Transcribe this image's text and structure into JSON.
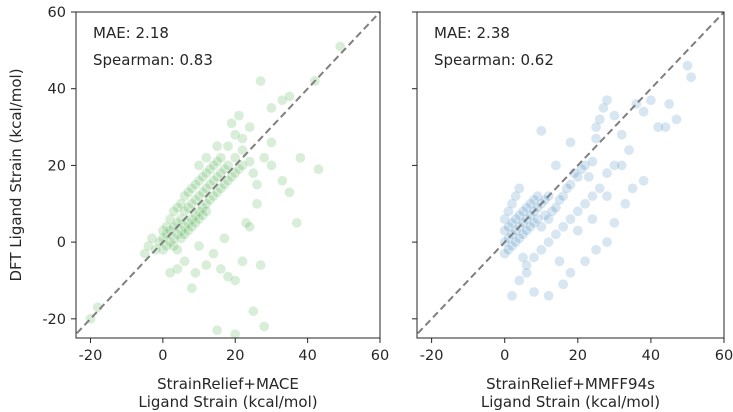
{
  "chart_data": [
    {
      "type": "scatter",
      "title": "",
      "xlabel": [
        "StrainRelief+MACE",
        "Ligand Strain (kcal/mol)"
      ],
      "ylabel": "DFT Ligand Strain (kcal/mol)",
      "xlim": [
        -24,
        60
      ],
      "ylim": [
        -25,
        60
      ],
      "x_ticks": [
        -20,
        0,
        20,
        40,
        60
      ],
      "y_ticks": [
        -20,
        0,
        20,
        40,
        60
      ],
      "tick_labels_x": [
        "-20",
        "0",
        "20",
        "40",
        "60"
      ],
      "tick_labels_y": [
        "-20",
        "0",
        "20",
        "40",
        "60"
      ],
      "point_color": "#2ca02c",
      "point_alpha": 0.18,
      "diagonal": {
        "style": "dashed",
        "color": "#7f7f7f"
      },
      "annotations": [
        "MAE: 2.18",
        "Spearman: 0.83"
      ],
      "series": [
        {
          "points": [
            [
              -20,
              -20
            ],
            [
              -18,
              -17
            ],
            [
              -5,
              -3
            ],
            [
              -4,
              -1
            ],
            [
              -3,
              1
            ],
            [
              -2,
              -2
            ],
            [
              -1,
              0
            ],
            [
              0,
              1
            ],
            [
              0,
              -2
            ],
            [
              0,
              3
            ],
            [
              1,
              2
            ],
            [
              1,
              -1
            ],
            [
              1,
              4
            ],
            [
              2,
              0
            ],
            [
              2,
              3
            ],
            [
              2,
              6
            ],
            [
              3,
              1
            ],
            [
              3,
              4
            ],
            [
              3,
              8
            ],
            [
              3,
              -1
            ],
            [
              4,
              2
            ],
            [
              4,
              5
            ],
            [
              4,
              9
            ],
            [
              4,
              -2
            ],
            [
              5,
              3
            ],
            [
              5,
              6
            ],
            [
              5,
              10
            ],
            [
              5,
              1
            ],
            [
              6,
              4
            ],
            [
              6,
              8
            ],
            [
              6,
              12
            ],
            [
              6,
              2
            ],
            [
              7,
              5
            ],
            [
              7,
              9
            ],
            [
              7,
              13
            ],
            [
              7,
              3
            ],
            [
              8,
              6
            ],
            [
              8,
              10
            ],
            [
              8,
              14
            ],
            [
              8,
              4
            ],
            [
              9,
              7
            ],
            [
              9,
              11
            ],
            [
              9,
              15
            ],
            [
              9,
              5
            ],
            [
              10,
              8
            ],
            [
              10,
              12
            ],
            [
              10,
              16
            ],
            [
              10,
              6
            ],
            [
              11,
              9
            ],
            [
              11,
              13
            ],
            [
              11,
              17
            ],
            [
              11,
              7
            ],
            [
              12,
              10
            ],
            [
              12,
              14
            ],
            [
              12,
              18
            ],
            [
              12,
              8
            ],
            [
              13,
              11
            ],
            [
              13,
              15
            ],
            [
              13,
              19
            ],
            [
              14,
              12
            ],
            [
              14,
              16
            ],
            [
              14,
              20
            ],
            [
              15,
              13
            ],
            [
              15,
              17
            ],
            [
              15,
              21
            ],
            [
              16,
              14
            ],
            [
              16,
              18
            ],
            [
              16,
              22
            ],
            [
              17,
              15
            ],
            [
              17,
              19
            ],
            [
              18,
              16
            ],
            [
              18,
              20
            ],
            [
              19,
              17
            ],
            [
              20,
              18
            ],
            [
              20,
              22
            ],
            [
              21,
              19
            ],
            [
              22,
              20
            ],
            [
              22,
              24
            ],
            [
              24,
              21
            ],
            [
              25,
              18
            ],
            [
              26,
              15
            ],
            [
              28,
              22
            ],
            [
              30,
              26
            ],
            [
              33,
              37
            ],
            [
              35,
              38
            ],
            [
              30,
              35
            ],
            [
              27,
              42
            ],
            [
              24,
              30
            ],
            [
              22,
              27
            ],
            [
              20,
              28
            ],
            [
              18,
              25
            ],
            [
              15,
              25
            ],
            [
              12,
              22
            ],
            [
              10,
              20
            ],
            [
              19,
              31
            ],
            [
              21,
              33
            ],
            [
              30,
              20
            ],
            [
              33,
              16
            ],
            [
              35,
              13
            ],
            [
              38,
              22
            ],
            [
              42,
              42
            ],
            [
              43,
              19
            ],
            [
              49,
              51
            ],
            [
              37,
              5
            ],
            [
              23,
              5
            ],
            [
              6,
              -5
            ],
            [
              9,
              -8
            ],
            [
              12,
              -6
            ],
            [
              16,
              -7
            ],
            [
              18,
              -9
            ],
            [
              20,
              -10
            ],
            [
              22,
              -5
            ],
            [
              27,
              -6
            ],
            [
              25,
              -18
            ],
            [
              28,
              -22
            ],
            [
              20,
              -24
            ],
            [
              15,
              -23
            ],
            [
              8,
              -12
            ],
            [
              4,
              -7
            ],
            [
              2,
              -8
            ],
            [
              14,
              -3
            ],
            [
              10,
              -1
            ],
            [
              24,
              4
            ],
            [
              17,
              1
            ],
            [
              26,
              10
            ]
          ]
        }
      ]
    },
    {
      "type": "scatter",
      "title": "",
      "xlabel": [
        "StrainRelief+MMFF94s",
        "Ligand Strain (kcal/mol)"
      ],
      "ylabel": "",
      "xlim": [
        -24,
        60
      ],
      "ylim": [
        -25,
        60
      ],
      "x_ticks": [
        -20,
        0,
        20,
        40,
        60
      ],
      "y_ticks": [
        -20,
        0,
        20,
        40,
        60
      ],
      "tick_labels_x": [
        "-20",
        "0",
        "20",
        "40",
        "60"
      ],
      "tick_labels_y": [],
      "point_color": "#1f77b4",
      "point_alpha": 0.18,
      "diagonal": {
        "style": "dashed",
        "color": "#7f7f7f"
      },
      "annotations": [
        "MAE: 2.38",
        "Spearman: 0.62"
      ],
      "series": [
        {
          "points": [
            [
              0,
              0
            ],
            [
              0,
              3
            ],
            [
              0,
              -3
            ],
            [
              0,
              6
            ],
            [
              1,
              1
            ],
            [
              1,
              4
            ],
            [
              1,
              -2
            ],
            [
              1,
              8
            ],
            [
              2,
              2
            ],
            [
              2,
              5
            ],
            [
              2,
              -1
            ],
            [
              2,
              10
            ],
            [
              3,
              3
            ],
            [
              3,
              6
            ],
            [
              3,
              0
            ],
            [
              3,
              12
            ],
            [
              4,
              4
            ],
            [
              4,
              7
            ],
            [
              4,
              1
            ],
            [
              4,
              14
            ],
            [
              5,
              5
            ],
            [
              5,
              8
            ],
            [
              5,
              2
            ],
            [
              5,
              -4
            ],
            [
              6,
              6
            ],
            [
              6,
              9
            ],
            [
              6,
              3
            ],
            [
              6,
              -6
            ],
            [
              7,
              7
            ],
            [
              7,
              10
            ],
            [
              7,
              4
            ],
            [
              8,
              8
            ],
            [
              8,
              11
            ],
            [
              8,
              5
            ],
            [
              9,
              9
            ],
            [
              9,
              12
            ],
            [
              9,
              6
            ],
            [
              10,
              10
            ],
            [
              10,
              4
            ],
            [
              11,
              11
            ],
            [
              11,
              7
            ],
            [
              12,
              12
            ],
            [
              12,
              6
            ],
            [
              13,
              8
            ],
            [
              14,
              9
            ],
            [
              15,
              11
            ],
            [
              15,
              -5
            ],
            [
              16,
              12
            ],
            [
              17,
              14
            ],
            [
              18,
              15
            ],
            [
              19,
              18
            ],
            [
              20,
              17
            ],
            [
              21,
              19
            ],
            [
              22,
              20
            ],
            [
              23,
              17
            ],
            [
              24,
              21
            ],
            [
              25,
              27
            ],
            [
              26,
              32
            ],
            [
              27,
              35
            ],
            [
              25,
              30
            ],
            [
              28,
              37
            ],
            [
              30,
              33
            ],
            [
              32,
              28
            ],
            [
              34,
              24
            ],
            [
              36,
              36
            ],
            [
              38,
              34
            ],
            [
              40,
              37
            ],
            [
              42,
              30
            ],
            [
              45,
              36
            ],
            [
              50,
              46
            ],
            [
              51,
              43
            ],
            [
              47,
              32
            ],
            [
              44,
              30
            ],
            [
              30,
              20
            ],
            [
              28,
              18
            ],
            [
              26,
              14
            ],
            [
              24,
              12
            ],
            [
              22,
              10
            ],
            [
              20,
              8
            ],
            [
              18,
              6
            ],
            [
              16,
              4
            ],
            [
              14,
              2
            ],
            [
              12,
              0
            ],
            [
              10,
              -2
            ],
            [
              8,
              -4
            ],
            [
              6,
              -8
            ],
            [
              4,
              -10
            ],
            [
              2,
              -14
            ],
            [
              8,
              -13
            ],
            [
              12,
              -14
            ],
            [
              16,
              -11
            ],
            [
              18,
              -8
            ],
            [
              22,
              -5
            ],
            [
              25,
              -2
            ],
            [
              28,
              0
            ],
            [
              30,
              5
            ],
            [
              33,
              10
            ],
            [
              35,
              14
            ],
            [
              38,
              16
            ],
            [
              20,
              3
            ],
            [
              24,
              6
            ],
            [
              28,
              12
            ],
            [
              18,
              26
            ],
            [
              14,
              20
            ],
            [
              10,
              29
            ],
            [
              32,
              20
            ]
          ]
        }
      ]
    }
  ]
}
